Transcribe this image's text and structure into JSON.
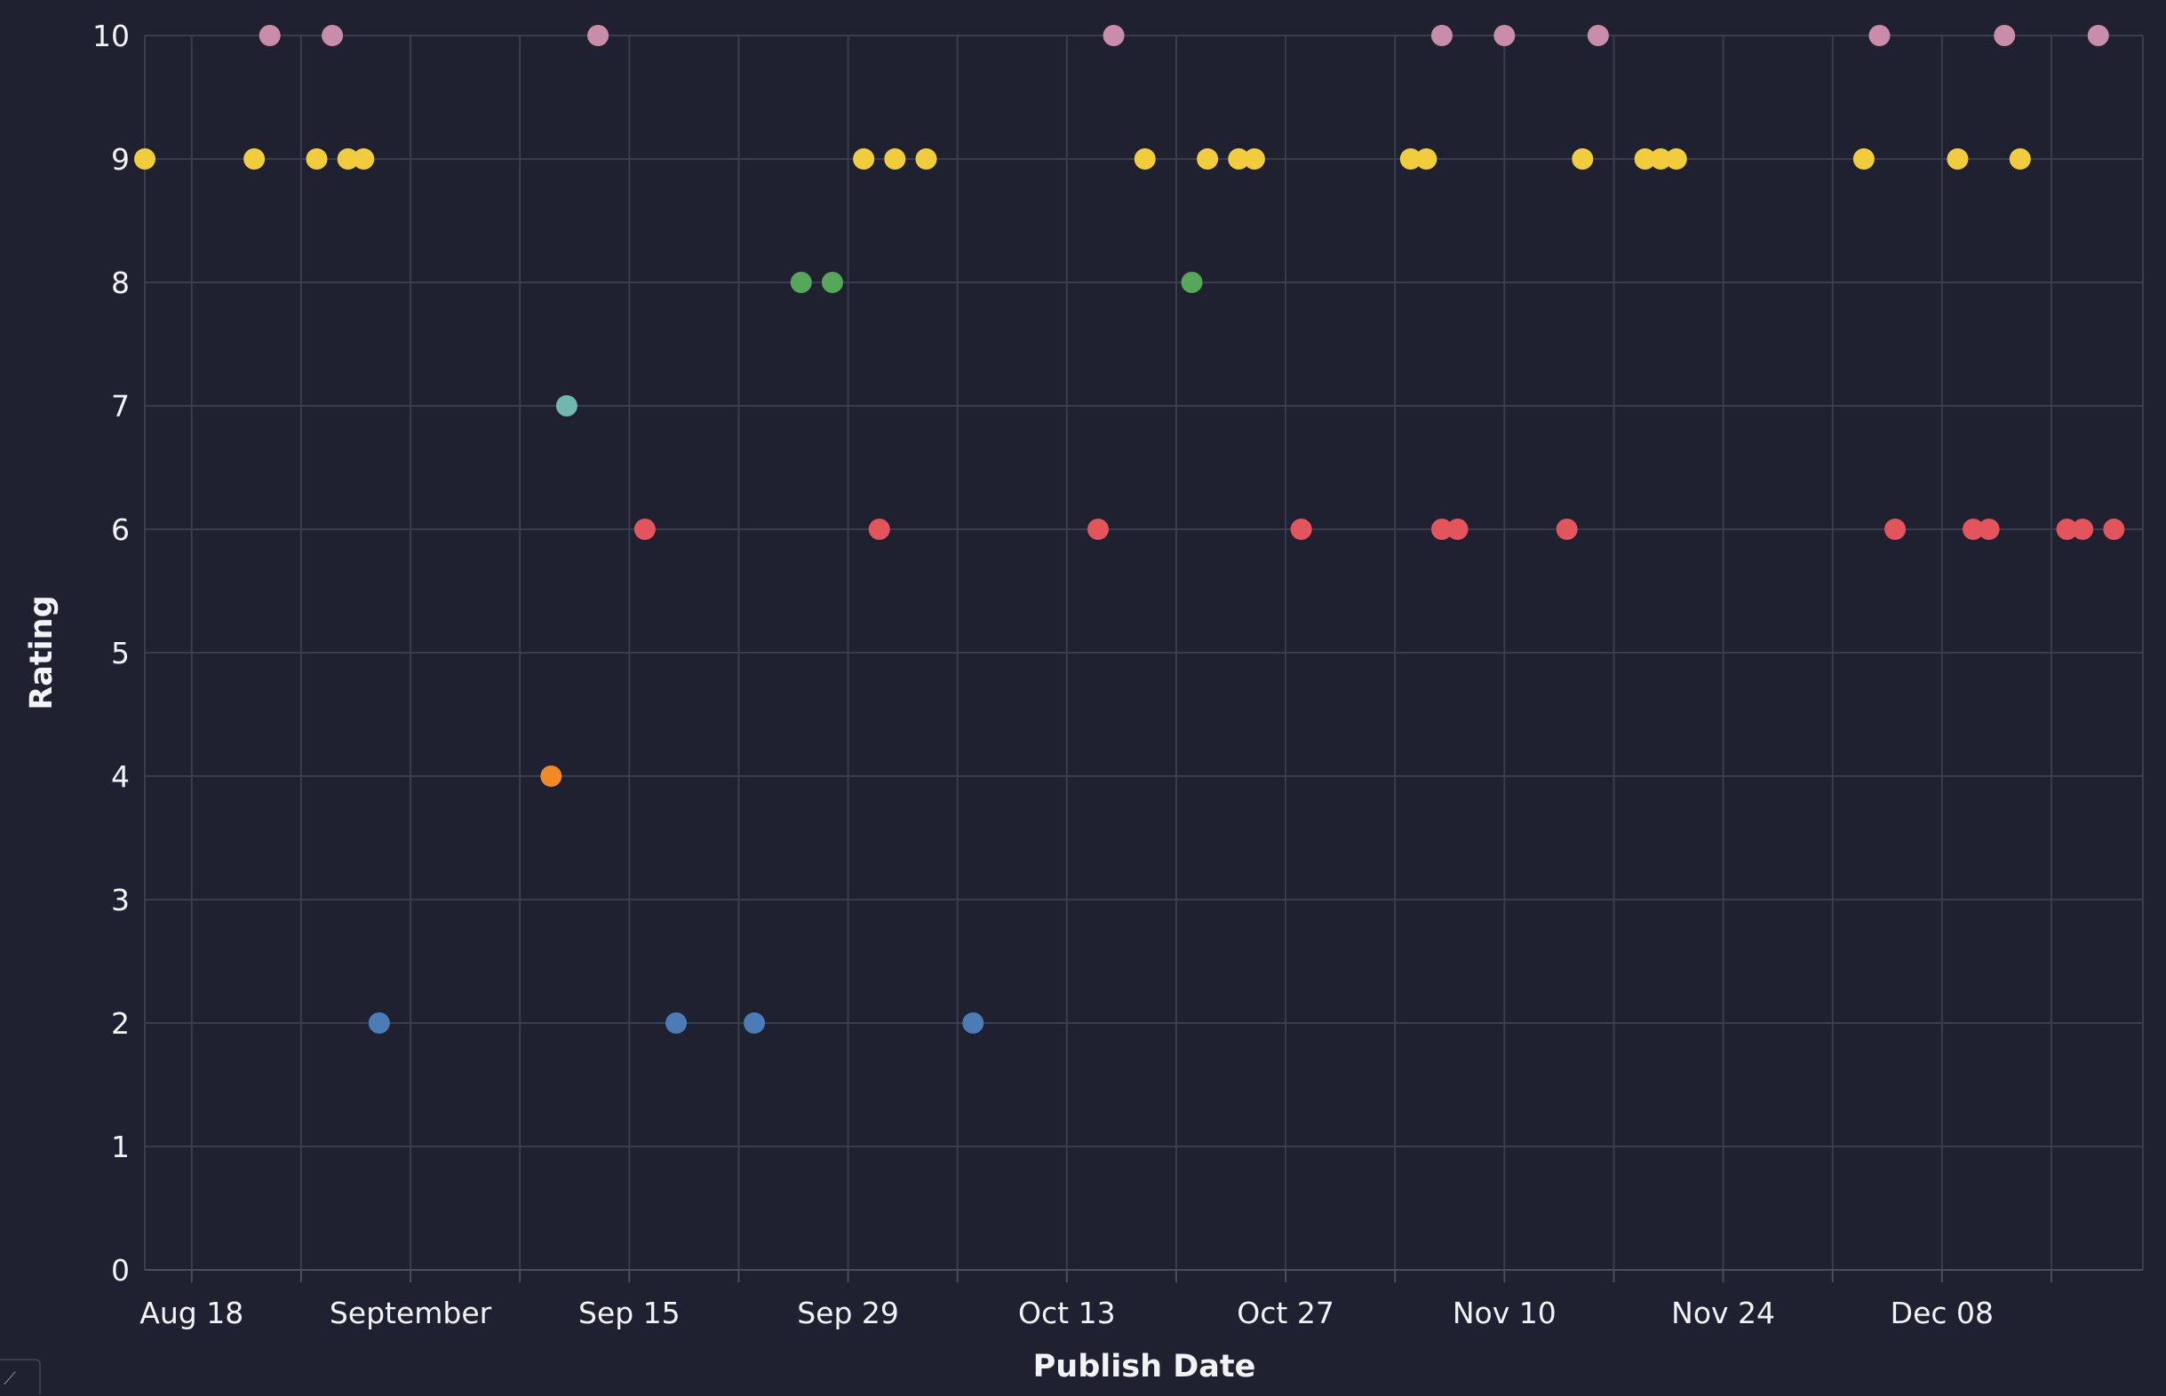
{
  "chart_data": {
    "type": "scatter",
    "xlabel": "Publish Date",
    "ylabel": "Rating",
    "ylim": [
      0,
      10
    ],
    "xlim": [
      "2024-08-15",
      "2024-12-23"
    ],
    "yticks": [
      0,
      1,
      2,
      3,
      4,
      5,
      6,
      7,
      8,
      9,
      10
    ],
    "xticks": [
      {
        "date": "2024-08-18",
        "label": "Aug 18"
      },
      {
        "date": "2024-09-01",
        "label": "September"
      },
      {
        "date": "2024-09-15",
        "label": "Sep 15"
      },
      {
        "date": "2024-09-29",
        "label": "Sep 29"
      },
      {
        "date": "2024-10-13",
        "label": "Oct 13"
      },
      {
        "date": "2024-10-27",
        "label": "Oct 27"
      },
      {
        "date": "2024-11-10",
        "label": "Nov 10"
      },
      {
        "date": "2024-11-24",
        "label": "Nov 24"
      },
      {
        "date": "2024-12-08",
        "label": "Dec 08"
      }
    ],
    "minor_ticks": [
      "2024-08-25",
      "2024-09-08",
      "2024-09-22",
      "2024-10-06",
      "2024-10-20",
      "2024-11-03",
      "2024-11-17",
      "2024-12-01",
      "2024-12-15"
    ],
    "grid": true,
    "legend": "none",
    "series": [
      {
        "color": "#f2cd3b",
        "points": [
          {
            "x": "2024-08-15",
            "y": 9
          },
          {
            "x": "2024-08-22",
            "y": 9
          },
          {
            "x": "2024-08-26",
            "y": 9
          },
          {
            "x": "2024-08-28",
            "y": 9
          },
          {
            "x": "2024-08-29",
            "y": 9
          },
          {
            "x": "2024-09-30",
            "y": 9
          },
          {
            "x": "2024-10-02",
            "y": 9
          },
          {
            "x": "2024-10-04",
            "y": 9
          },
          {
            "x": "2024-10-18",
            "y": 9
          },
          {
            "x": "2024-10-22",
            "y": 9
          },
          {
            "x": "2024-10-24",
            "y": 9
          },
          {
            "x": "2024-10-25",
            "y": 9
          },
          {
            "x": "2024-11-04",
            "y": 9
          },
          {
            "x": "2024-11-05",
            "y": 9
          },
          {
            "x": "2024-11-15",
            "y": 9
          },
          {
            "x": "2024-11-19",
            "y": 9
          },
          {
            "x": "2024-11-20",
            "y": 9
          },
          {
            "x": "2024-11-21",
            "y": 9
          },
          {
            "x": "2024-12-03",
            "y": 9
          },
          {
            "x": "2024-12-09",
            "y": 9
          },
          {
            "x": "2024-12-13",
            "y": 9
          }
        ]
      },
      {
        "color": "#c98da9",
        "points": [
          {
            "x": "2024-08-23",
            "y": 10
          },
          {
            "x": "2024-08-27",
            "y": 10
          },
          {
            "x": "2024-09-13",
            "y": 10
          },
          {
            "x": "2024-10-16",
            "y": 10
          },
          {
            "x": "2024-11-06",
            "y": 10
          },
          {
            "x": "2024-11-10",
            "y": 10
          },
          {
            "x": "2024-11-16",
            "y": 10
          },
          {
            "x": "2024-12-04",
            "y": 10
          },
          {
            "x": "2024-12-12",
            "y": 10
          },
          {
            "x": "2024-12-18",
            "y": 10
          }
        ]
      },
      {
        "color": "#e3555a",
        "points": [
          {
            "x": "2024-09-16",
            "y": 6
          },
          {
            "x": "2024-10-01",
            "y": 6
          },
          {
            "x": "2024-10-15",
            "y": 6
          },
          {
            "x": "2024-10-28",
            "y": 6
          },
          {
            "x": "2024-11-06",
            "y": 6
          },
          {
            "x": "2024-11-07",
            "y": 6
          },
          {
            "x": "2024-11-14",
            "y": 6
          },
          {
            "x": "2024-12-05",
            "y": 6
          },
          {
            "x": "2024-12-10",
            "y": 6
          },
          {
            "x": "2024-12-11",
            "y": 6
          },
          {
            "x": "2024-12-16",
            "y": 6
          },
          {
            "x": "2024-12-17",
            "y": 6
          },
          {
            "x": "2024-12-19",
            "y": 6
          }
        ]
      },
      {
        "color": "#4c7cb5",
        "points": [
          {
            "x": "2024-08-30",
            "y": 2
          },
          {
            "x": "2024-09-18",
            "y": 2
          },
          {
            "x": "2024-09-23",
            "y": 2
          },
          {
            "x": "2024-10-07",
            "y": 2
          }
        ]
      },
      {
        "color": "#55a859",
        "points": [
          {
            "x": "2024-09-26",
            "y": 8
          },
          {
            "x": "2024-09-28",
            "y": 8
          },
          {
            "x": "2024-10-21",
            "y": 8
          }
        ]
      },
      {
        "color": "#72b7ae",
        "points": [
          {
            "x": "2024-09-11",
            "y": 7
          }
        ]
      },
      {
        "color": "#f08a26",
        "points": [
          {
            "x": "2024-09-10",
            "y": 4
          }
        ]
      }
    ]
  },
  "corner_widget": {
    "icon": "resize-icon",
    "glyph": "⟋"
  }
}
